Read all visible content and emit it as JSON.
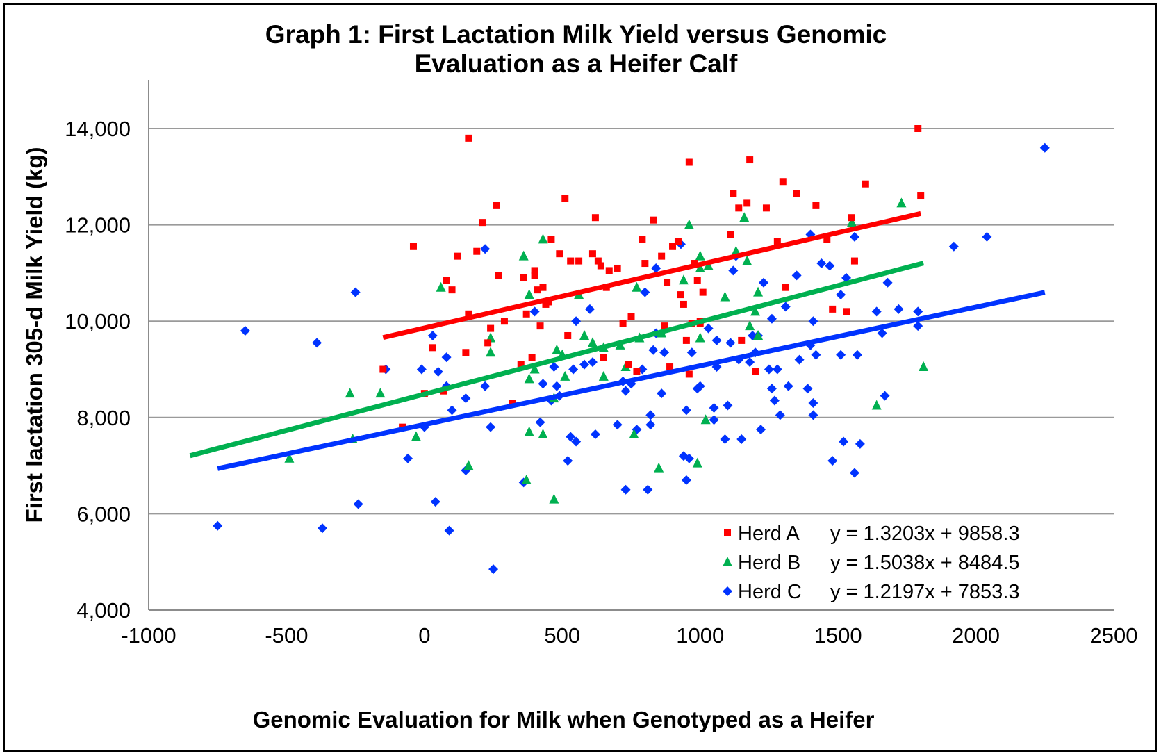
{
  "chart_data": {
    "type": "scatter",
    "title": "Graph 1: First Lactation Milk Yield versus Genomic Evaluation as a Heifer Calf",
    "title_lines": [
      "Graph 1: First Lactation Milk Yield versus Genomic",
      "Evaluation as a Heifer Calf"
    ],
    "xlabel": "Genomic Evaluation for Milk when Genotyped as a Heifer",
    "ylabel": "First lactation 305-d Milk Yield (kg)",
    "xlim": [
      -1000,
      2500
    ],
    "ylim": [
      4000,
      14000
    ],
    "x_ticks": [
      "-1000",
      "-500",
      "0",
      "500",
      "1000",
      "1500",
      "2000",
      "2500"
    ],
    "y_ticks": [
      "4,000",
      "6,000",
      "8,000",
      "10,000",
      "12,000",
      "14,000"
    ],
    "grid": "horizontal",
    "legend_position": "bottom-right",
    "series": [
      {
        "name": "Herd A",
        "marker": "square",
        "color": "#ff0000",
        "equation": "y = 1.3203x + 9858.3",
        "trend_x": [
          -150,
          1800
        ],
        "points": [
          [
            -150,
            9000
          ],
          [
            -80,
            7800
          ],
          [
            -40,
            11550
          ],
          [
            0,
            8500
          ],
          [
            30,
            9450
          ],
          [
            70,
            8550
          ],
          [
            80,
            10850
          ],
          [
            100,
            10650
          ],
          [
            120,
            11350
          ],
          [
            150,
            9350
          ],
          [
            160,
            13800
          ],
          [
            160,
            10150
          ],
          [
            190,
            11450
          ],
          [
            210,
            12050
          ],
          [
            230,
            9550
          ],
          [
            240,
            9850
          ],
          [
            260,
            12400
          ],
          [
            270,
            10950
          ],
          [
            290,
            10000
          ],
          [
            320,
            8300
          ],
          [
            350,
            9100
          ],
          [
            360,
            10900
          ],
          [
            370,
            10150
          ],
          [
            390,
            9250
          ],
          [
            400,
            10950
          ],
          [
            400,
            11050
          ],
          [
            410,
            10650
          ],
          [
            420,
            9900
          ],
          [
            430,
            10700
          ],
          [
            440,
            10350
          ],
          [
            450,
            10400
          ],
          [
            460,
            11700
          ],
          [
            490,
            11400
          ],
          [
            510,
            12550
          ],
          [
            520,
            9700
          ],
          [
            530,
            11250
          ],
          [
            560,
            11250
          ],
          [
            610,
            11400
          ],
          [
            620,
            12150
          ],
          [
            630,
            11250
          ],
          [
            640,
            11150
          ],
          [
            650,
            9250
          ],
          [
            660,
            10700
          ],
          [
            670,
            11050
          ],
          [
            700,
            11100
          ],
          [
            720,
            9950
          ],
          [
            740,
            9100
          ],
          [
            750,
            10100
          ],
          [
            770,
            8950
          ],
          [
            790,
            11700
          ],
          [
            800,
            11200
          ],
          [
            830,
            12100
          ],
          [
            860,
            11350
          ],
          [
            870,
            9900
          ],
          [
            880,
            10800
          ],
          [
            890,
            9050
          ],
          [
            900,
            11550
          ],
          [
            920,
            11650
          ],
          [
            930,
            10550
          ],
          [
            940,
            10350
          ],
          [
            950,
            9600
          ],
          [
            960,
            13300
          ],
          [
            960,
            8900
          ],
          [
            970,
            9950
          ],
          [
            980,
            11200
          ],
          [
            990,
            10850
          ],
          [
            1000,
            10000
          ],
          [
            1000,
            9950
          ],
          [
            1010,
            10600
          ],
          [
            1110,
            11800
          ],
          [
            1120,
            12650
          ],
          [
            1140,
            12350
          ],
          [
            1150,
            9600
          ],
          [
            1170,
            12450
          ],
          [
            1180,
            13350
          ],
          [
            1200,
            8950
          ],
          [
            1240,
            12350
          ],
          [
            1280,
            11650
          ],
          [
            1300,
            12900
          ],
          [
            1310,
            10700
          ],
          [
            1350,
            12650
          ],
          [
            1420,
            12400
          ],
          [
            1460,
            11700
          ],
          [
            1480,
            10250
          ],
          [
            1530,
            10200
          ],
          [
            1550,
            12150
          ],
          [
            1560,
            11250
          ],
          [
            1600,
            12850
          ],
          [
            1790,
            14000
          ],
          [
            1800,
            12600
          ]
        ]
      },
      {
        "name": "Herd B",
        "marker": "triangle",
        "color": "#00b050",
        "equation": "y = 1.5038x + 8484.5",
        "trend_x": [
          -850,
          1810
        ],
        "points": [
          [
            -490,
            7150
          ],
          [
            -270,
            8500
          ],
          [
            -260,
            7550
          ],
          [
            -160,
            8500
          ],
          [
            -30,
            7600
          ],
          [
            60,
            10700
          ],
          [
            160,
            7000
          ],
          [
            240,
            9650
          ],
          [
            240,
            9350
          ],
          [
            360,
            11350
          ],
          [
            370,
            6700
          ],
          [
            380,
            8800
          ],
          [
            380,
            7700
          ],
          [
            380,
            10550
          ],
          [
            400,
            9000
          ],
          [
            430,
            11700
          ],
          [
            430,
            7650
          ],
          [
            470,
            6300
          ],
          [
            470,
            8400
          ],
          [
            480,
            9400
          ],
          [
            500,
            9300
          ],
          [
            510,
            8850
          ],
          [
            560,
            10550
          ],
          [
            580,
            9700
          ],
          [
            610,
            9550
          ],
          [
            650,
            9450
          ],
          [
            650,
            8850
          ],
          [
            710,
            9500
          ],
          [
            730,
            9050
          ],
          [
            760,
            7650
          ],
          [
            770,
            10700
          ],
          [
            780,
            9650
          ],
          [
            850,
            6950
          ],
          [
            860,
            9750
          ],
          [
            940,
            10850
          ],
          [
            960,
            12000
          ],
          [
            990,
            7050
          ],
          [
            1000,
            11350
          ],
          [
            1000,
            11100
          ],
          [
            1000,
            9650
          ],
          [
            1020,
            7950
          ],
          [
            1030,
            11150
          ],
          [
            1090,
            10500
          ],
          [
            1130,
            11450
          ],
          [
            1160,
            12150
          ],
          [
            1170,
            11250
          ],
          [
            1180,
            9900
          ],
          [
            1200,
            10200
          ],
          [
            1210,
            10600
          ],
          [
            1210,
            9700
          ],
          [
            1550,
            12050
          ],
          [
            1640,
            8250
          ],
          [
            1730,
            12450
          ],
          [
            1810,
            9050
          ]
        ]
      },
      {
        "name": "Herd C",
        "marker": "diamond",
        "color": "#0033ff",
        "equation": "y = 1.2197x + 7853.3",
        "trend_x": [
          -750,
          2250
        ],
        "points": [
          [
            -750,
            5750
          ],
          [
            -650,
            9800
          ],
          [
            -390,
            9550
          ],
          [
            -370,
            5700
          ],
          [
            -250,
            10600
          ],
          [
            -240,
            6200
          ],
          [
            -140,
            9000
          ],
          [
            -60,
            7150
          ],
          [
            -10,
            9000
          ],
          [
            0,
            7800
          ],
          [
            30,
            9700
          ],
          [
            40,
            6250
          ],
          [
            50,
            8950
          ],
          [
            80,
            9250
          ],
          [
            80,
            8650
          ],
          [
            90,
            5650
          ],
          [
            100,
            8150
          ],
          [
            150,
            8400
          ],
          [
            150,
            6900
          ],
          [
            220,
            8650
          ],
          [
            220,
            11500
          ],
          [
            240,
            7800
          ],
          [
            250,
            4850
          ],
          [
            360,
            6650
          ],
          [
            400,
            10200
          ],
          [
            420,
            7900
          ],
          [
            430,
            8700
          ],
          [
            460,
            8350
          ],
          [
            470,
            9050
          ],
          [
            480,
            8650
          ],
          [
            490,
            8450
          ],
          [
            520,
            7100
          ],
          [
            530,
            7600
          ],
          [
            540,
            9000
          ],
          [
            550,
            7500
          ],
          [
            550,
            10000
          ],
          [
            580,
            9100
          ],
          [
            600,
            10250
          ],
          [
            610,
            9150
          ],
          [
            620,
            7650
          ],
          [
            700,
            7850
          ],
          [
            720,
            8750
          ],
          [
            730,
            6500
          ],
          [
            730,
            8550
          ],
          [
            750,
            8700
          ],
          [
            770,
            7750
          ],
          [
            790,
            9000
          ],
          [
            800,
            10600
          ],
          [
            810,
            6500
          ],
          [
            820,
            7850
          ],
          [
            820,
            8050
          ],
          [
            830,
            9400
          ],
          [
            840,
            11100
          ],
          [
            840,
            9750
          ],
          [
            860,
            8500
          ],
          [
            870,
            9350
          ],
          [
            930,
            11600
          ],
          [
            940,
            7200
          ],
          [
            950,
            6700
          ],
          [
            950,
            8150
          ],
          [
            960,
            7150
          ],
          [
            970,
            9350
          ],
          [
            990,
            8600
          ],
          [
            1000,
            8650
          ],
          [
            1030,
            9850
          ],
          [
            1050,
            8200
          ],
          [
            1050,
            7950
          ],
          [
            1060,
            9600
          ],
          [
            1060,
            9050
          ],
          [
            1090,
            7550
          ],
          [
            1100,
            8250
          ],
          [
            1110,
            9550
          ],
          [
            1120,
            11050
          ],
          [
            1130,
            11350
          ],
          [
            1140,
            9200
          ],
          [
            1150,
            7550
          ],
          [
            1180,
            9150
          ],
          [
            1190,
            9700
          ],
          [
            1200,
            9350
          ],
          [
            1210,
            9700
          ],
          [
            1220,
            7750
          ],
          [
            1230,
            10800
          ],
          [
            1250,
            9000
          ],
          [
            1260,
            8600
          ],
          [
            1260,
            10050
          ],
          [
            1270,
            8350
          ],
          [
            1280,
            9000
          ],
          [
            1290,
            8050
          ],
          [
            1310,
            10300
          ],
          [
            1320,
            8650
          ],
          [
            1350,
            10950
          ],
          [
            1360,
            9200
          ],
          [
            1390,
            8600
          ],
          [
            1400,
            11800
          ],
          [
            1400,
            9500
          ],
          [
            1410,
            10000
          ],
          [
            1410,
            8300
          ],
          [
            1410,
            8050
          ],
          [
            1420,
            9300
          ],
          [
            1440,
            11200
          ],
          [
            1470,
            11150
          ],
          [
            1480,
            7100
          ],
          [
            1510,
            10550
          ],
          [
            1510,
            9300
          ],
          [
            1520,
            7500
          ],
          [
            1530,
            10900
          ],
          [
            1560,
            11750
          ],
          [
            1560,
            6850
          ],
          [
            1570,
            9300
          ],
          [
            1580,
            7450
          ],
          [
            1640,
            10200
          ],
          [
            1660,
            9750
          ],
          [
            1670,
            8450
          ],
          [
            1680,
            10800
          ],
          [
            1720,
            10250
          ],
          [
            1790,
            10200
          ],
          [
            1790,
            9900
          ],
          [
            1920,
            11550
          ],
          [
            2040,
            11750
          ],
          [
            2250,
            13600
          ]
        ]
      }
    ]
  }
}
